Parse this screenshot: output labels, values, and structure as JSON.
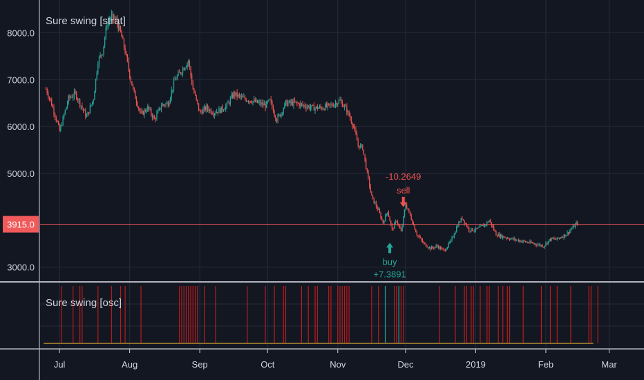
{
  "colors": {
    "background": "#131722",
    "grid": "#262b38",
    "axis_text": "#d1d4dc",
    "divider": "#b2b5be",
    "up": "#26a69a",
    "down": "#ef5350",
    "price_line": "#f05a5a",
    "osc_bar": "#b71c1c",
    "osc_baseline": "#8d6e2a",
    "text": "#d1d4dc"
  },
  "chart_data": [
    {
      "type": "candlestick",
      "title": "Sure swing [strat]",
      "y_ticks": [
        3000,
        5000,
        6000,
        7000,
        8000
      ],
      "y_tick_labels": [
        "3000.0",
        "5000.0",
        "6000.0",
        "7000.0",
        "8000.0"
      ],
      "ylim": [
        2700,
        8700
      ],
      "last_price": 3915,
      "last_price_label": "3915.0",
      "x_ticks": [
        "Jul",
        "Aug",
        "Sep",
        "Oct",
        "Nov",
        "Dec",
        "2019",
        "Feb",
        "Mar"
      ],
      "xlim_days": [
        -8.6,
        258.4
      ],
      "x_tick_days": [
        0,
        31,
        62,
        92,
        123,
        153,
        184,
        215,
        243
      ],
      "price_path": [
        [
          -6,
          6800
        ],
        [
          -4,
          6550
        ],
        [
          -2,
          6250
        ],
        [
          0,
          5900
        ],
        [
          2,
          6250
        ],
        [
          4,
          6600
        ],
        [
          7,
          6700
        ],
        [
          9,
          6500
        ],
        [
          12,
          6200
        ],
        [
          15,
          6600
        ],
        [
          17,
          7400
        ],
        [
          19,
          7600
        ],
        [
          21,
          8200
        ],
        [
          23,
          8350
        ],
        [
          25,
          8250
        ],
        [
          27,
          8000
        ],
        [
          29,
          7600
        ],
        [
          31,
          7100
        ],
        [
          33,
          6700
        ],
        [
          36,
          6250
        ],
        [
          39,
          6400
        ],
        [
          42,
          6150
        ],
        [
          45,
          6450
        ],
        [
          48,
          6500
        ],
        [
          51,
          7000
        ],
        [
          54,
          7200
        ],
        [
          57,
          7400
        ],
        [
          59,
          6800
        ],
        [
          62,
          6300
        ],
        [
          65,
          6400
        ],
        [
          68,
          6300
        ],
        [
          71,
          6350
        ],
        [
          74,
          6450
        ],
        [
          77,
          6700
        ],
        [
          81,
          6600
        ],
        [
          85,
          6550
        ],
        [
          88,
          6500
        ],
        [
          91,
          6450
        ],
        [
          93,
          6550
        ],
        [
          96,
          6150
        ],
        [
          98,
          6300
        ],
        [
          100,
          6500
        ],
        [
          104,
          6500
        ],
        [
          108,
          6450
        ],
        [
          112,
          6400
        ],
        [
          116,
          6400
        ],
        [
          120,
          6450
        ],
        [
          124,
          6550
        ],
        [
          127,
          6350
        ],
        [
          130,
          6000
        ],
        [
          132,
          5600
        ],
        [
          134,
          5550
        ],
        [
          136,
          5000
        ],
        [
          138,
          4500
        ],
        [
          141,
          4200
        ],
        [
          143,
          3950
        ],
        [
          145,
          4200
        ],
        [
          147,
          3800
        ],
        [
          149,
          4000
        ],
        [
          151,
          3750
        ],
        [
          153,
          4350
        ],
        [
          155,
          4100
        ],
        [
          158,
          3700
        ],
        [
          161,
          3500
        ],
        [
          164,
          3400
        ],
        [
          167,
          3450
        ],
        [
          170,
          3350
        ],
        [
          173,
          3550
        ],
        [
          176,
          3900
        ],
        [
          178,
          4050
        ],
        [
          181,
          3800
        ],
        [
          184,
          3800
        ],
        [
          186,
          3850
        ],
        [
          188,
          3900
        ],
        [
          190,
          4000
        ],
        [
          193,
          3700
        ],
        [
          196,
          3650
        ],
        [
          200,
          3600
        ],
        [
          205,
          3550
        ],
        [
          210,
          3500
        ],
        [
          214,
          3450
        ],
        [
          217,
          3600
        ],
        [
          220,
          3600
        ],
        [
          224,
          3700
        ],
        [
          227,
          3850
        ],
        [
          229,
          3950
        ]
      ],
      "annotations": [
        {
          "text": "buy",
          "value_text": "+7.3891",
          "x_day": 146,
          "y": 3520,
          "kind": "buy"
        },
        {
          "text": "sell",
          "value_text": "-10.2649",
          "x_day": 152,
          "y": 4280,
          "kind": "sell"
        }
      ],
      "grid": true
    },
    {
      "type": "bar",
      "title": "Sure swing [osc]",
      "signal_days": [
        1,
        6,
        9,
        10,
        17,
        23,
        27,
        29,
        36,
        53,
        54,
        55,
        56,
        57,
        58,
        59,
        60,
        61,
        64,
        69,
        83,
        91,
        95,
        99,
        100,
        107,
        110,
        113,
        114,
        119,
        120,
        123,
        124,
        125,
        126,
        127,
        128,
        138,
        141,
        144,
        148,
        149,
        150,
        151,
        152,
        168,
        175,
        179,
        180,
        182,
        183,
        186,
        189,
        190,
        194,
        196,
        198,
        199,
        205,
        213,
        217,
        220,
        226,
        234,
        235,
        238
      ],
      "buy_days": [
        144,
        150
      ],
      "grid": true
    }
  ]
}
